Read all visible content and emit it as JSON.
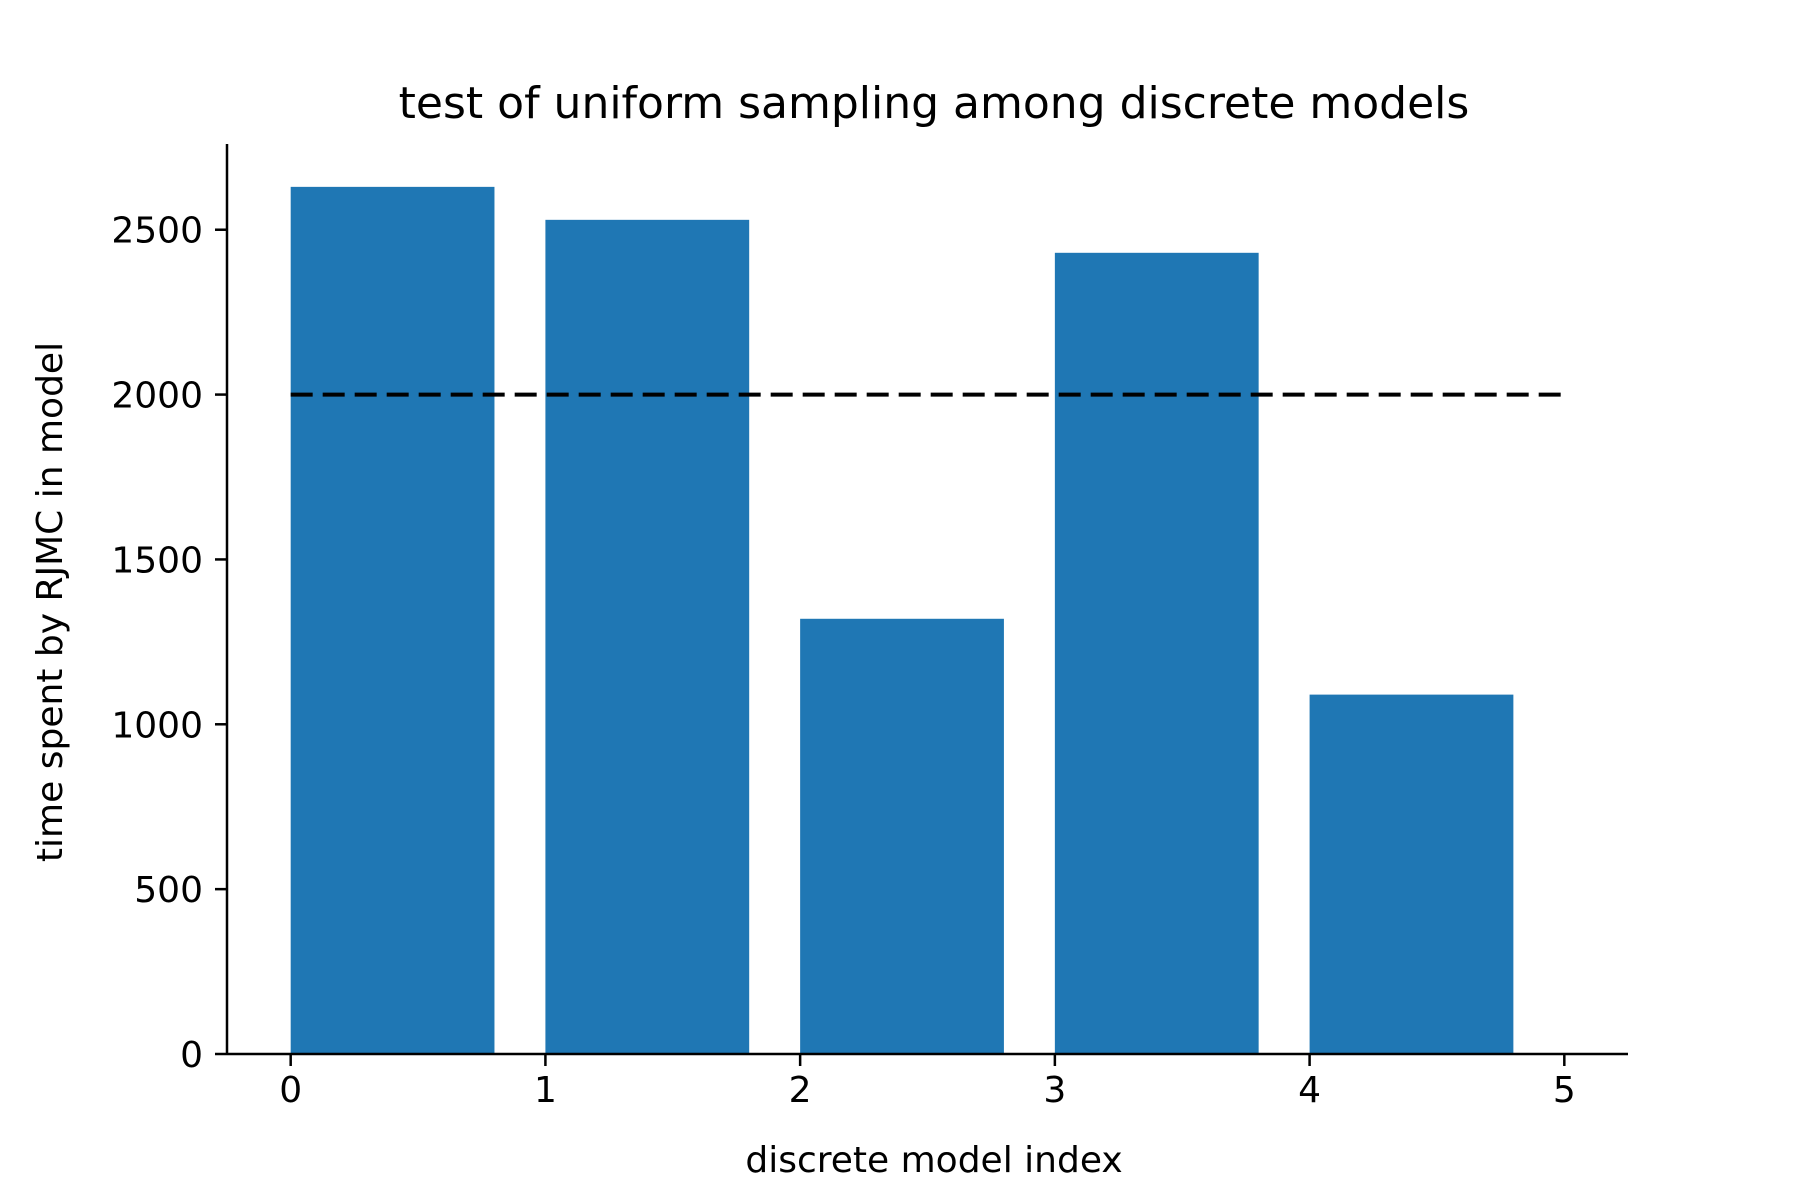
{
  "chart_data": {
    "type": "bar",
    "title": "test of uniform sampling among discrete models",
    "xlabel": "discrete model index",
    "ylabel": "time spent by RJMC in model",
    "categories": [
      0,
      1,
      2,
      3,
      4
    ],
    "values": [
      2630,
      2530,
      1320,
      2430,
      1090
    ],
    "bar_align": "edge",
    "bar_width": 0.8,
    "bar_color": "#1f77b4",
    "xlim": [
      -0.25,
      5.25
    ],
    "ylim": [
      0,
      2760
    ],
    "xticks": [
      0,
      1,
      2,
      3,
      4,
      5
    ],
    "yticks": [
      0,
      500,
      1000,
      1500,
      2000,
      2500
    ],
    "reference_line": {
      "y": 2000,
      "x_range": [
        0,
        5
      ],
      "style": "dashed",
      "color": "#000000"
    },
    "grid": false,
    "legend": "none",
    "spines": [
      "left",
      "bottom"
    ]
  }
}
